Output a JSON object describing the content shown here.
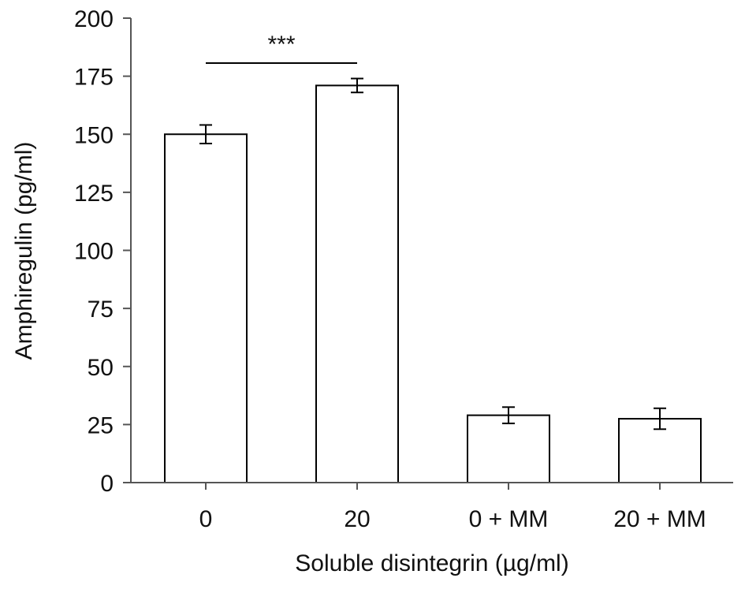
{
  "chart_data": {
    "type": "bar",
    "categories": [
      "0",
      "20",
      "0 + MM",
      "20 + MM"
    ],
    "values": [
      150,
      171,
      29,
      27.5
    ],
    "errors": [
      4,
      3,
      3.5,
      4.5
    ],
    "title": "",
    "xlabel": "Soluble disintegrin (µg/ml)",
    "ylabel": "Amphiregulin (pg/ml)",
    "ylim": [
      0,
      200
    ],
    "yticks": [
      0,
      25,
      50,
      75,
      100,
      125,
      150,
      175,
      200
    ],
    "grid": false,
    "annotations": [
      {
        "text": "***",
        "from_category": "0",
        "to_category": "20"
      }
    ],
    "colors": {
      "bar_fill": "#ffffff",
      "bar_stroke": "#000000",
      "axis": "#555555",
      "text": "#111111"
    }
  }
}
